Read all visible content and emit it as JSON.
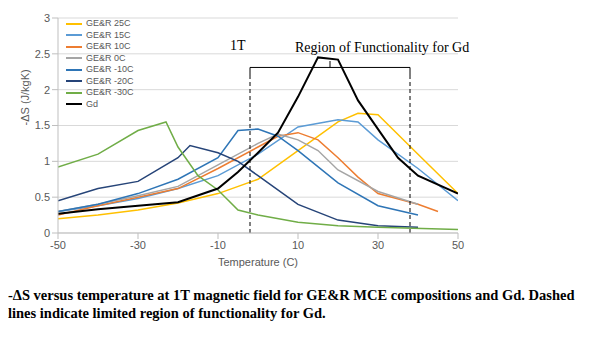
{
  "chart_data": {
    "type": "line",
    "x_label": "Temperature (C)",
    "y_label": "-ΔS (J/kgK)",
    "xlim": [
      -50,
      50
    ],
    "xticks": [
      -50,
      -30,
      -10,
      10,
      30,
      50
    ],
    "ylim": [
      0,
      3
    ],
    "yticks": [
      0,
      0.5,
      1,
      1.5,
      2,
      2.5,
      3
    ],
    "grid": true,
    "legend": "top-left",
    "marker": "none",
    "line_style": "solid",
    "annotations": [
      "1T",
      "Region of Functionality for Gd"
    ],
    "region_lines": [
      -2,
      38
    ],
    "caption": "-ΔS versus temperature at 1T magnetic field for GE&R MCE compositions and Gd. Dashed lines indicate limited region of functionality for Gd.",
    "series": [
      {
        "name": "GE&R 25C",
        "color": "#ffc000",
        "x": [
          -50,
          -40,
          -30,
          -20,
          -10,
          0,
          10,
          20,
          25,
          30,
          40,
          50
        ],
        "values": [
          0.2,
          0.25,
          0.32,
          0.42,
          0.55,
          0.75,
          1.15,
          1.55,
          1.67,
          1.65,
          1.1,
          0.55
        ]
      },
      {
        "name": "GE&R 15C",
        "color": "#5b9bd5",
        "x": [
          -50,
          -40,
          -30,
          -20,
          -10,
          0,
          10,
          20,
          25,
          30,
          40,
          50
        ],
        "values": [
          0.3,
          0.38,
          0.48,
          0.62,
          0.8,
          1.1,
          1.48,
          1.58,
          1.55,
          1.3,
          0.9,
          0.45
        ]
      },
      {
        "name": "GE&R 10C",
        "color": "#ed7d31",
        "x": [
          -50,
          -40,
          -30,
          -20,
          -10,
          0,
          5,
          10,
          15,
          20,
          25,
          30,
          40,
          45
        ],
        "values": [
          0.25,
          0.38,
          0.5,
          0.62,
          0.9,
          1.2,
          1.35,
          1.4,
          1.3,
          1.05,
          0.78,
          0.55,
          0.4,
          0.3
        ]
      },
      {
        "name": "GE&R 0C",
        "color": "#a5a5a5",
        "x": [
          -50,
          -40,
          -30,
          -20,
          -10,
          0,
          5,
          10,
          15,
          20,
          30,
          40
        ],
        "values": [
          0.3,
          0.4,
          0.52,
          0.65,
          0.95,
          1.25,
          1.38,
          1.3,
          1.15,
          0.88,
          0.58,
          0.4
        ]
      },
      {
        "name": "GE&R -10C",
        "color": "#2e75b6",
        "x": [
          -50,
          -40,
          -30,
          -20,
          -10,
          -5,
          0,
          5,
          10,
          20,
          30,
          40
        ],
        "values": [
          0.3,
          0.4,
          0.55,
          0.75,
          1.05,
          1.43,
          1.45,
          1.35,
          1.15,
          0.7,
          0.38,
          0.25
        ]
      },
      {
        "name": "GE&R -20C",
        "color": "#264478",
        "x": [
          -50,
          -40,
          -30,
          -20,
          -17,
          -10,
          -5,
          0,
          10,
          20,
          30,
          40
        ],
        "values": [
          0.45,
          0.62,
          0.72,
          1.05,
          1.22,
          1.12,
          1.0,
          0.8,
          0.4,
          0.18,
          0.1,
          0.08
        ]
      },
      {
        "name": "GE&R -30C",
        "color": "#70ad47",
        "x": [
          -50,
          -40,
          -30,
          -23,
          -20,
          -15,
          -10,
          -5,
          0,
          10,
          20,
          30,
          50
        ],
        "values": [
          0.92,
          1.1,
          1.43,
          1.55,
          1.2,
          0.8,
          0.6,
          0.32,
          0.25,
          0.15,
          0.1,
          0.08,
          0.05
        ]
      },
      {
        "name": "Gd",
        "color": "#000000",
        "x": [
          -50,
          -40,
          -30,
          -20,
          -10,
          -5,
          0,
          5,
          10,
          15,
          20,
          25,
          30,
          35,
          40,
          50
        ],
        "values": [
          0.27,
          0.33,
          0.38,
          0.43,
          0.62,
          0.85,
          1.12,
          1.4,
          1.9,
          2.45,
          2.42,
          1.85,
          1.45,
          1.05,
          0.8,
          0.55
        ]
      }
    ]
  }
}
